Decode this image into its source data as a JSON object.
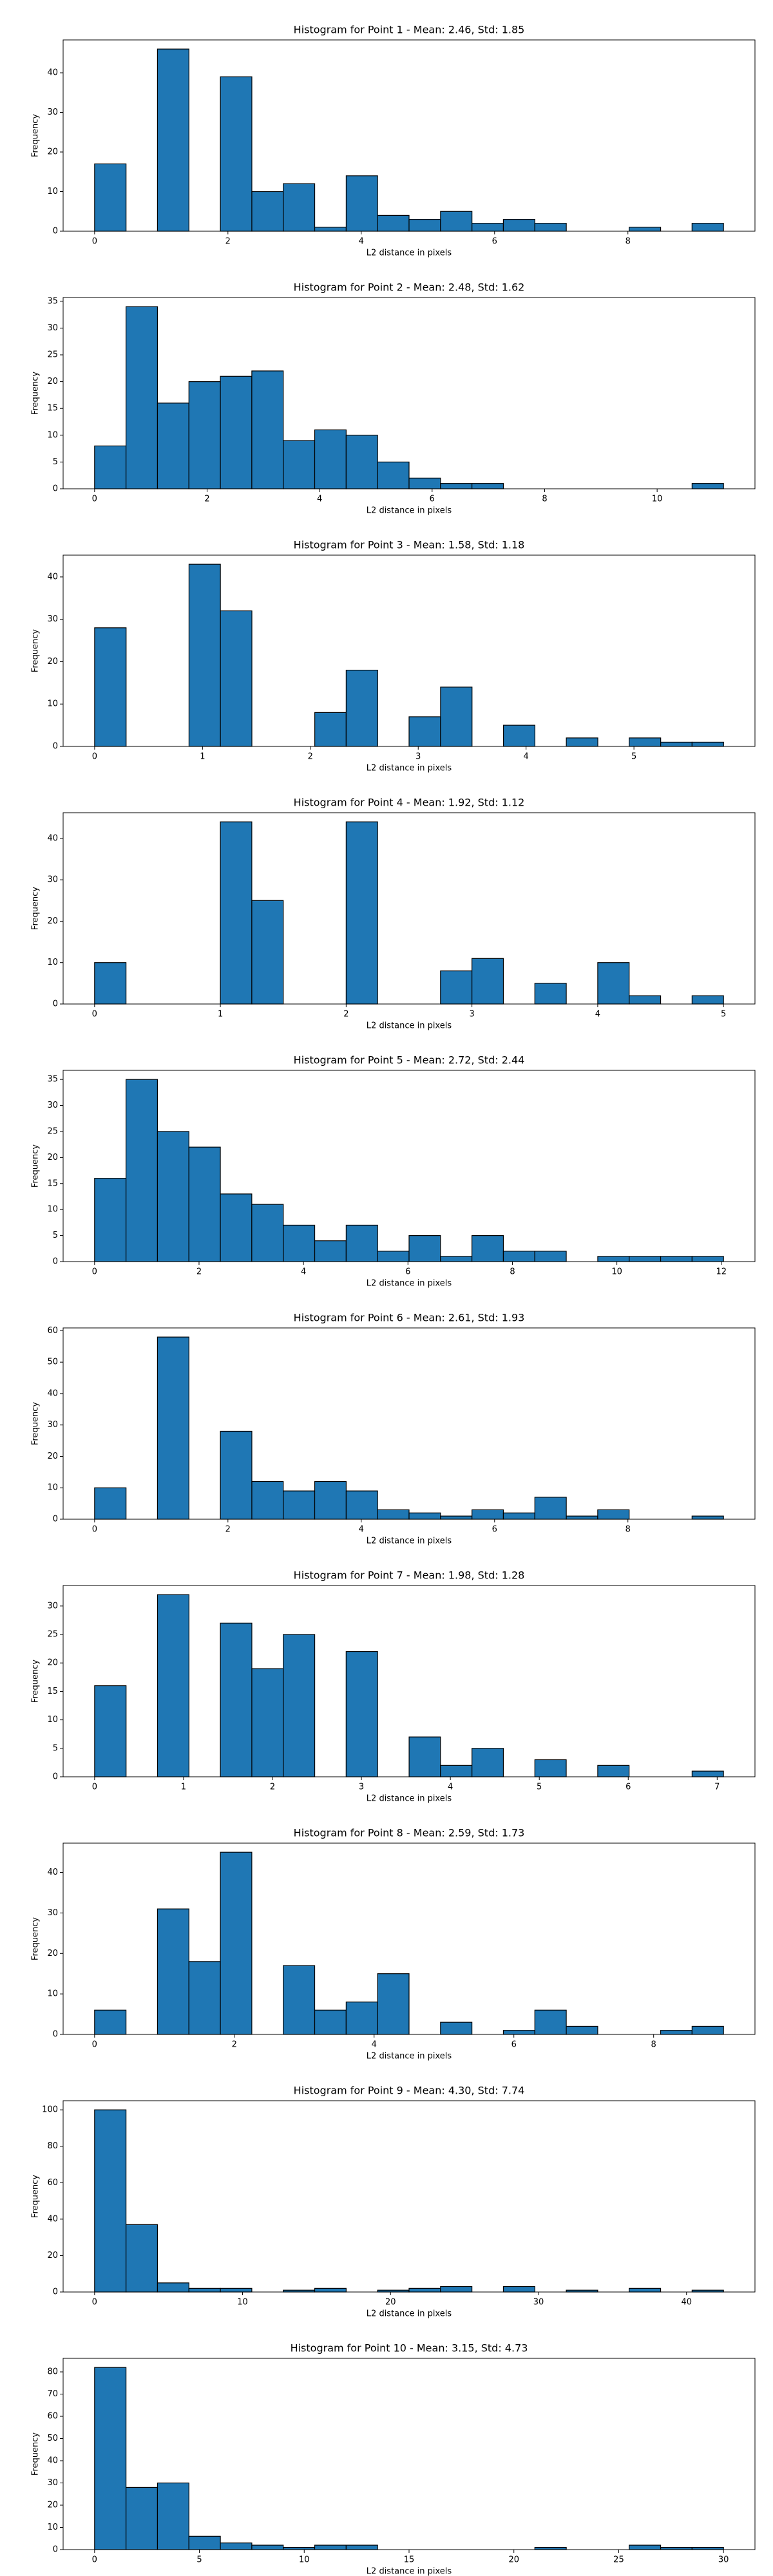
{
  "chart_data": [
    {
      "type": "histogram",
      "title": "Histogram for Point 1 - Mean: 2.46, Std: 1.85",
      "x_label": "L2 distance in pixels",
      "y_label": "Frequency",
      "color": "#1f77b4",
      "edgecolor": "#000000",
      "bins": [
        0,
        0.472,
        0.943,
        1.415,
        1.887,
        2.359,
        2.83,
        3.302,
        3.774,
        4.245,
        4.717,
        5.189,
        5.661,
        6.132,
        6.604,
        7.076,
        7.547,
        8.019,
        8.491,
        8.962,
        9.434
      ],
      "values": [
        17,
        0,
        46,
        0,
        39,
        10,
        12,
        1,
        14,
        4,
        3,
        5,
        2,
        3,
        2,
        0,
        0,
        1,
        0,
        2
      ],
      "xlim": [
        -0.472,
        9.906
      ],
      "ylim": [
        0,
        48.3
      ],
      "xticks": [
        0,
        2,
        4,
        6,
        8
      ],
      "yticks": [
        0,
        10,
        20,
        30,
        40
      ]
    },
    {
      "type": "histogram",
      "title": "Histogram for Point 2 - Mean: 2.48, Std: 1.62",
      "x_label": "L2 distance in pixels",
      "y_label": "Frequency",
      "color": "#1f77b4",
      "edgecolor": "#000000",
      "bins": [
        0,
        0.559,
        1.118,
        1.677,
        2.236,
        2.795,
        3.354,
        3.913,
        4.472,
        5.031,
        5.59,
        6.149,
        6.708,
        7.267,
        7.826,
        8.385,
        8.944,
        9.503,
        10.062,
        10.621,
        11.18
      ],
      "values": [
        8,
        34,
        16,
        20,
        21,
        22,
        9,
        11,
        10,
        5,
        2,
        1,
        1,
        0,
        0,
        0,
        0,
        0,
        0,
        1
      ],
      "xlim": [
        -0.559,
        11.739
      ],
      "ylim": [
        0,
        35.7
      ],
      "xticks": [
        0,
        2,
        4,
        6,
        8,
        10
      ],
      "yticks": [
        0,
        5,
        10,
        15,
        20,
        25,
        30,
        35
      ]
    },
    {
      "type": "histogram",
      "title": "Histogram for Point 3 - Mean: 1.58, Std: 1.18",
      "x_label": "L2 distance in pixels",
      "y_label": "Frequency",
      "color": "#1f77b4",
      "edgecolor": "#000000",
      "bins": [
        0,
        0.292,
        0.583,
        0.875,
        1.166,
        1.458,
        1.749,
        2.041,
        2.332,
        2.624,
        2.915,
        3.207,
        3.499,
        3.79,
        4.082,
        4.373,
        4.665,
        4.956,
        5.248,
        5.539,
        5.831
      ],
      "values": [
        28,
        0,
        0,
        43,
        32,
        0,
        0,
        8,
        18,
        0,
        7,
        14,
        0,
        5,
        0,
        2,
        0,
        2,
        1,
        1
      ],
      "xlim": [
        -0.292,
        6.122
      ],
      "ylim": [
        0,
        45.15
      ],
      "xticks": [
        0,
        1,
        2,
        3,
        4,
        5
      ],
      "yticks": [
        0,
        10,
        20,
        30,
        40
      ]
    },
    {
      "type": "histogram",
      "title": "Histogram for Point 4 - Mean: 1.92, Std: 1.12",
      "x_label": "L2 distance in pixels",
      "y_label": "Frequency",
      "color": "#1f77b4",
      "edgecolor": "#000000",
      "bins": [
        0,
        0.25,
        0.5,
        0.75,
        1,
        1.25,
        1.5,
        1.75,
        2,
        2.25,
        2.5,
        2.75,
        3,
        3.25,
        3.5,
        3.75,
        4,
        4.25,
        4.5,
        4.75,
        5
      ],
      "values": [
        10,
        0,
        0,
        0,
        44,
        25,
        0,
        0,
        44,
        0,
        0,
        8,
        11,
        0,
        5,
        0,
        10,
        2,
        0,
        2
      ],
      "xlim": [
        -0.25,
        5.25
      ],
      "ylim": [
        0,
        46.2
      ],
      "xticks": [
        0,
        1,
        2,
        3,
        4,
        5
      ],
      "yticks": [
        0,
        10,
        20,
        30,
        40
      ]
    },
    {
      "type": "histogram",
      "title": "Histogram for Point 5 - Mean: 2.72, Std: 2.44",
      "x_label": "L2 distance in pixels",
      "y_label": "Frequency",
      "color": "#1f77b4",
      "edgecolor": "#000000",
      "bins": [
        0,
        0.602,
        1.204,
        1.806,
        2.408,
        3.01,
        3.613,
        4.215,
        4.817,
        5.419,
        6.021,
        6.623,
        7.225,
        7.827,
        8.429,
        9.031,
        9.634,
        10.236,
        10.838,
        11.44,
        12.042
      ],
      "values": [
        16,
        35,
        25,
        22,
        13,
        11,
        7,
        4,
        7,
        2,
        5,
        1,
        5,
        2,
        2,
        0,
        1,
        1,
        1,
        1
      ],
      "xlim": [
        -0.602,
        12.644
      ],
      "ylim": [
        0,
        36.75
      ],
      "xticks": [
        0,
        2,
        4,
        6,
        8,
        10,
        12
      ],
      "yticks": [
        0,
        5,
        10,
        15,
        20,
        25,
        30,
        35
      ]
    },
    {
      "type": "histogram",
      "title": "Histogram for Point 6 - Mean: 2.61, Std: 1.93",
      "x_label": "L2 distance in pixels",
      "y_label": "Frequency",
      "color": "#1f77b4",
      "edgecolor": "#000000",
      "bins": [
        0,
        0.472,
        0.943,
        1.415,
        1.887,
        2.359,
        2.83,
        3.302,
        3.774,
        4.245,
        4.717,
        5.189,
        5.661,
        6.132,
        6.604,
        7.076,
        7.547,
        8.019,
        8.491,
        8.962,
        9.434
      ],
      "values": [
        10,
        0,
        58,
        0,
        28,
        12,
        9,
        12,
        9,
        3,
        2,
        1,
        3,
        2,
        7,
        1,
        3,
        0,
        0,
        1
      ],
      "xlim": [
        -0.472,
        9.906
      ],
      "ylim": [
        0,
        60.9
      ],
      "xticks": [
        0,
        2,
        4,
        6,
        8
      ],
      "yticks": [
        0,
        10,
        20,
        30,
        40,
        50,
        60
      ]
    },
    {
      "type": "histogram",
      "title": "Histogram for Point 7 - Mean: 1.98, Std: 1.28",
      "x_label": "L2 distance in pixels",
      "y_label": "Frequency",
      "color": "#1f77b4",
      "edgecolor": "#000000",
      "bins": [
        0,
        0.354,
        0.707,
        1.061,
        1.414,
        1.768,
        2.121,
        2.475,
        2.828,
        3.182,
        3.536,
        3.889,
        4.243,
        4.596,
        4.95,
        5.303,
        5.657,
        6.01,
        6.364,
        6.718,
        7.071
      ],
      "values": [
        16,
        0,
        32,
        0,
        27,
        19,
        25,
        0,
        22,
        0,
        7,
        2,
        5,
        0,
        3,
        0,
        2,
        0,
        0,
        1
      ],
      "xlim": [
        -0.354,
        7.425
      ],
      "ylim": [
        0,
        33.6
      ],
      "xticks": [
        0,
        1,
        2,
        3,
        4,
        5,
        6,
        7
      ],
      "yticks": [
        0,
        5,
        10,
        15,
        20,
        25,
        30
      ]
    },
    {
      "type": "histogram",
      "title": "Histogram for Point 8 - Mean: 2.59, Std: 1.73",
      "x_label": "L2 distance in pixels",
      "y_label": "Frequency",
      "color": "#1f77b4",
      "edgecolor": "#000000",
      "bins": [
        0,
        0.45,
        0.9,
        1.35,
        1.8,
        2.25,
        2.7,
        3.15,
        3.6,
        4.05,
        4.5,
        4.95,
        5.4,
        5.85,
        6.3,
        6.75,
        7.2,
        7.65,
        8.1,
        8.55,
        9
      ],
      "values": [
        6,
        0,
        31,
        18,
        45,
        0,
        17,
        6,
        8,
        15,
        0,
        3,
        0,
        1,
        6,
        2,
        0,
        0,
        1,
        2
      ],
      "xlim": [
        -0.45,
        9.45
      ],
      "ylim": [
        0,
        47.25
      ],
      "xticks": [
        0,
        2,
        4,
        6,
        8
      ],
      "yticks": [
        0,
        10,
        20,
        30,
        40
      ]
    },
    {
      "type": "histogram",
      "title": "Histogram for Point 9 - Mean: 4.30, Std: 7.74",
      "x_label": "L2 distance in pixels",
      "y_label": "Frequency",
      "color": "#1f77b4",
      "edgecolor": "#000000",
      "bins": [
        0,
        2.125,
        4.25,
        6.375,
        8.5,
        10.625,
        12.75,
        14.875,
        17,
        19.125,
        21.25,
        23.375,
        25.5,
        27.625,
        29.75,
        31.875,
        34,
        36.125,
        38.25,
        40.375,
        42.5
      ],
      "values": [
        100,
        37,
        5,
        2,
        2,
        0,
        1,
        2,
        0,
        1,
        2,
        3,
        0,
        3,
        0,
        1,
        0,
        2,
        0,
        1
      ],
      "xlim": [
        -2.125,
        44.625
      ],
      "ylim": [
        0,
        105
      ],
      "xticks": [
        0,
        10,
        20,
        30,
        40
      ],
      "yticks": [
        0,
        20,
        40,
        60,
        80,
        100
      ]
    },
    {
      "type": "histogram",
      "title": "Histogram for Point 10 - Mean: 3.15, Std: 4.73",
      "x_label": "L2 distance in pixels",
      "y_label": "Frequency",
      "color": "#1f77b4",
      "edgecolor": "#000000",
      "bins": [
        0,
        1.5,
        3,
        4.5,
        6,
        7.5,
        9,
        10.5,
        12,
        13.5,
        15,
        16.5,
        18,
        19.5,
        21,
        22.5,
        24,
        25.5,
        27,
        28.5,
        30
      ],
      "values": [
        82,
        28,
        30,
        6,
        3,
        2,
        1,
        2,
        2,
        0,
        0,
        0,
        0,
        0,
        1,
        0,
        0,
        2,
        1,
        1
      ],
      "xlim": [
        -1.5,
        31.5
      ],
      "ylim": [
        0,
        86.1
      ],
      "xticks": [
        0,
        5,
        10,
        15,
        20,
        25,
        30
      ],
      "yticks": [
        0,
        10,
        20,
        30,
        40,
        50,
        60,
        70,
        80
      ]
    }
  ]
}
